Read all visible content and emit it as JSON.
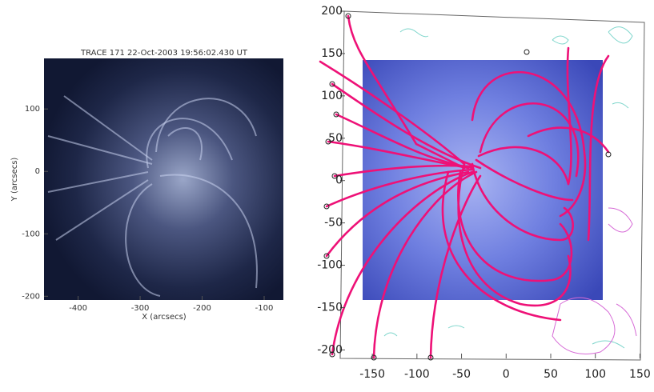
{
  "chart_data": [
    {
      "type": "image",
      "title": "TRACE 171 22-Oct-2003 19:56:02.430 UT",
      "xlabel": "X (arcsecs)",
      "ylabel": "Y (arcsecs)",
      "xlim": [
        -455,
        -69
      ],
      "ylim": [
        -206,
        181
      ],
      "xticks": [
        -400,
        -300,
        -200,
        -100
      ],
      "yticks": [
        -200,
        -100,
        0,
        100
      ]
    },
    {
      "type": "image",
      "xlim": [
        -186,
        155
      ],
      "ylim": [
        -210,
        200
      ],
      "xticks": [
        -150,
        -100,
        -50,
        0,
        50,
        100,
        150
      ],
      "yticks": [
        -200,
        -150,
        -100,
        -50,
        0,
        50,
        100,
        150,
        200
      ]
    }
  ]
}
